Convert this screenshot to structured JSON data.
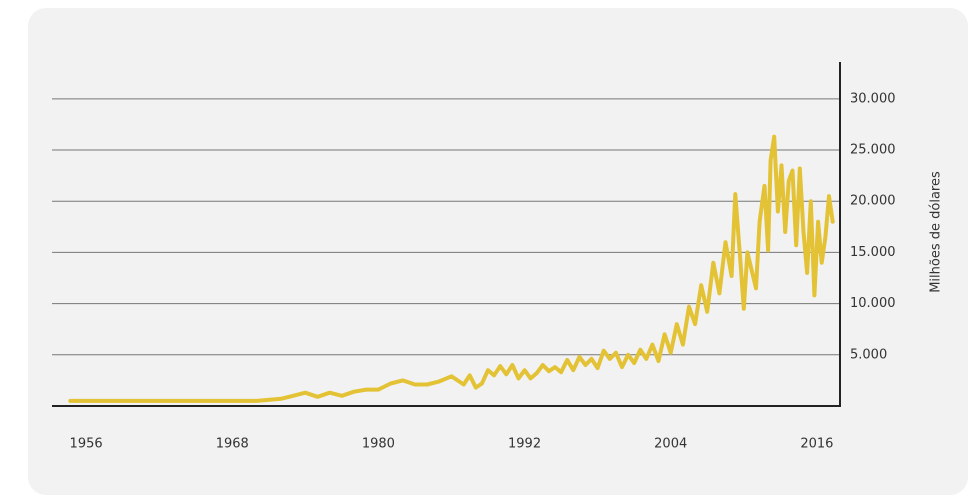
{
  "chart_data": {
    "type": "line",
    "ylabel": "Milhões de dólares",
    "x": [
      1954.7,
      1960,
      1965,
      1970,
      1972,
      1973,
      1974,
      1975,
      1976,
      1977,
      1978,
      1979,
      1980,
      1981,
      1982,
      1983,
      1984,
      1985,
      1986,
      1987,
      1987.5,
      1988,
      1988.5,
      1989,
      1989.5,
      1990,
      1990.5,
      1991,
      1991.5,
      1992,
      1992.5,
      1993,
      1993.5,
      1994,
      1994.5,
      1995,
      1995.5,
      1996,
      1996.5,
      1997,
      1997.5,
      1998,
      1998.5,
      1999,
      1999.5,
      2000,
      2000.5,
      2001,
      2001.5,
      2002,
      2002.5,
      2003,
      2003.5,
      2004,
      2004.5,
      2005,
      2005.5,
      2006,
      2006.5,
      2007,
      2007.5,
      2008,
      2008.5,
      2009,
      2009.3,
      2009.7,
      2010,
      2010.3,
      2010.7,
      2011,
      2011.3,
      2011.7,
      2012,
      2012.2,
      2012.5,
      2012.8,
      2013.1,
      2013.4,
      2013.7,
      2014,
      2014.3,
      2014.6,
      2014.9,
      2015.2,
      2015.5,
      2015.8,
      2016.1,
      2016.4,
      2016.7,
      2017,
      2017.3
    ],
    "series": [
      {
        "color": "#e3c335",
        "values": [
          500,
          500,
          500,
          500,
          700,
          1000,
          1300,
          900,
          1300,
          1000,
          1400,
          1600,
          1600,
          2200,
          2500,
          2100,
          2100,
          2400,
          2900,
          2100,
          3000,
          1800,
          2200,
          3500,
          3000,
          3900,
          3100,
          4000,
          2700,
          3500,
          2700,
          3200,
          4000,
          3400,
          3800,
          3300,
          4500,
          3500,
          4800,
          4000,
          4600,
          3700,
          5400,
          4600,
          5200,
          3800,
          5000,
          4200,
          5500,
          4600,
          6000,
          4400,
          7000,
          5200,
          8000,
          6000,
          9700,
          8000,
          11800,
          9200,
          14000,
          11000,
          16000,
          12700,
          20700,
          14500,
          9500,
          15000,
          13000,
          11500,
          18000,
          21500,
          15200,
          24000,
          26300,
          19000,
          23500,
          17000,
          22000,
          23000,
          15700,
          23200,
          17000,
          13000,
          20000,
          10800,
          18000,
          14000,
          16500,
          20500,
          18000
        ]
      }
    ],
    "xlim": [
      1953.2,
      2017.9
    ],
    "xticks": [
      1956,
      1968,
      1980,
      1992,
      2004,
      2016
    ],
    "ylim": [
      0,
      33600
    ],
    "yticks": [
      {
        "value": 5000,
        "label": "5.000"
      },
      {
        "value": 10000,
        "label": "10.000"
      },
      {
        "value": 15000,
        "label": "15.000"
      },
      {
        "value": 20000,
        "label": "20.000"
      },
      {
        "value": 25000,
        "label": "25.000"
      },
      {
        "value": 30000,
        "label": "30.000"
      }
    ],
    "grid": true
  }
}
